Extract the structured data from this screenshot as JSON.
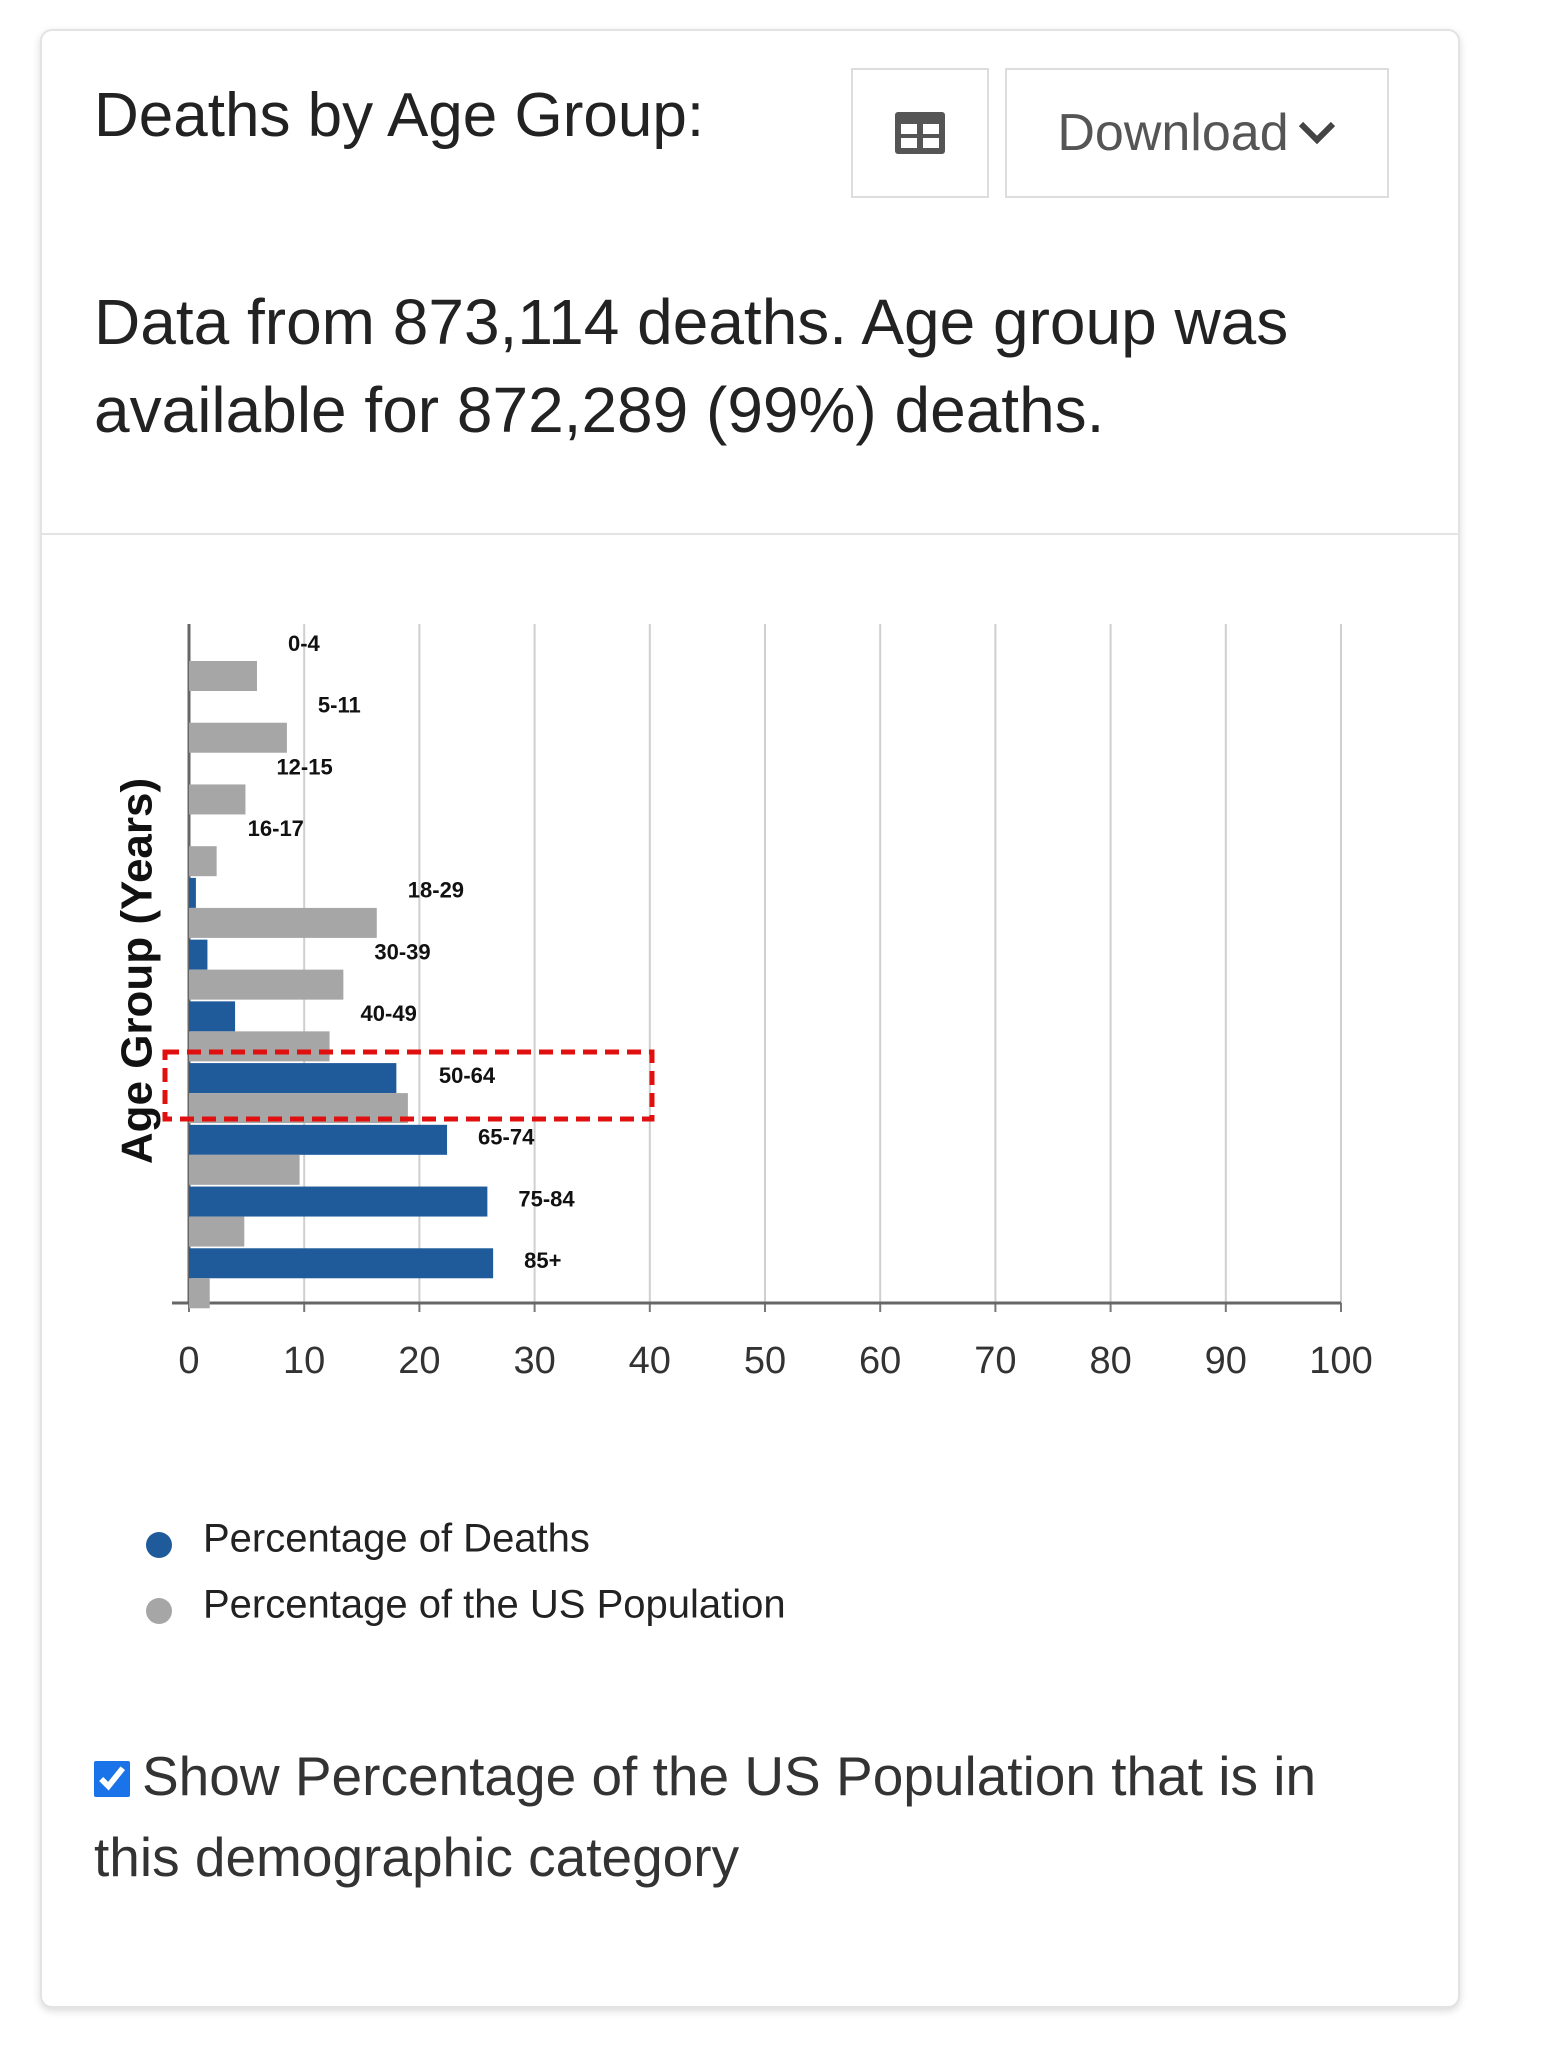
{
  "header": {
    "title": "Deaths by Age Group:",
    "download_button": "Download"
  },
  "description": "Data from 873,114 deaths. Age group was available for 872,289 (99%) deaths.",
  "chart_data": {
    "type": "bar",
    "orientation": "horizontal",
    "y_label": "Age Group (Years)",
    "categories": [
      "0-4",
      "5-11",
      "12-15",
      "16-17",
      "18-29",
      "30-39",
      "40-49",
      "50-64",
      "65-74",
      "75-84",
      "85+"
    ],
    "series": [
      {
        "name": "Percentage of Deaths",
        "color": "#1f5b9b",
        "values": [
          0,
          0,
          0,
          0,
          0.6,
          1.6,
          4.0,
          18.0,
          22.4,
          25.9,
          26.4
        ]
      },
      {
        "name": "Percentage of the US Population",
        "color": "#a6a6a6",
        "values": [
          5.9,
          8.5,
          4.9,
          2.4,
          16.3,
          13.4,
          12.2,
          19.0,
          9.6,
          4.8,
          1.8
        ]
      }
    ],
    "xlim": [
      0,
      100
    ],
    "xticks": [
      0,
      10,
      20,
      30,
      40,
      50,
      60,
      70,
      80,
      90,
      100
    ],
    "grid": true
  },
  "checkbox": {
    "label": "Show Percentage of the US Population that is in this demographic category",
    "checked": true
  }
}
